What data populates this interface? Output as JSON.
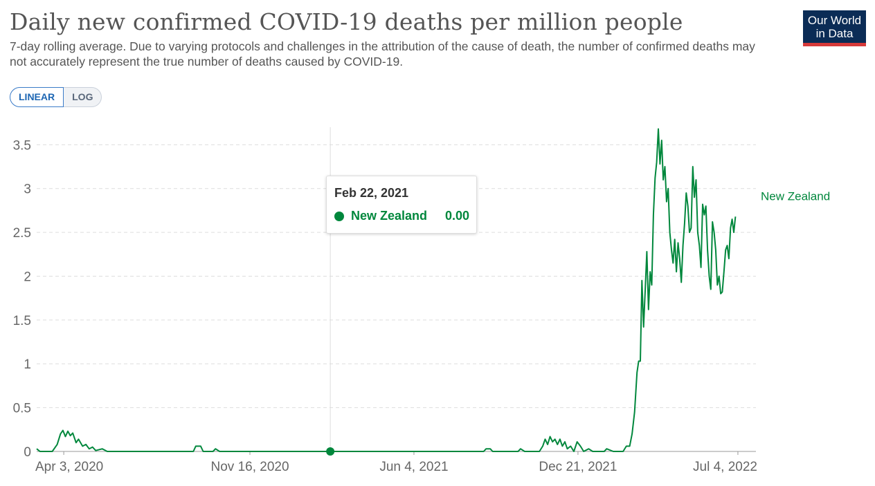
{
  "header": {
    "title": "Daily new confirmed COVID-19 deaths per million people",
    "subtitle": "7-day rolling average. Due to varying protocols and challenges in the attribution of the cause of death, the number of confirmed deaths may not accurately represent the true number of deaths caused by COVID-19."
  },
  "logo": {
    "line1": "Our World",
    "line2": "in Data"
  },
  "scale_toggle": {
    "linear_label": "LINEAR",
    "log_label": "LOG",
    "selected": "linear"
  },
  "tooltip": {
    "date": "Feb 22, 2021",
    "series": "New Zealand",
    "value": "0.00"
  },
  "colors": {
    "series": "#00873c",
    "accent": "#1d66b3"
  },
  "chart_data": {
    "type": "line",
    "title": "Daily new confirmed COVID-19 deaths per million people",
    "xlabel": "",
    "ylabel": "",
    "x_range": [
      "2020-03-01",
      "2022-07-26"
    ],
    "ylim": [
      0,
      3.7
    ],
    "grid": {
      "horizontal": true,
      "vertical": false
    },
    "y_ticks": [
      {
        "value": 0,
        "label": "0"
      },
      {
        "value": 0.5,
        "label": "0.5"
      },
      {
        "value": 1,
        "label": "1"
      },
      {
        "value": 1.5,
        "label": "1.5"
      },
      {
        "value": 2,
        "label": "2"
      },
      {
        "value": 2.5,
        "label": "2.5"
      },
      {
        "value": 3,
        "label": "3"
      },
      {
        "value": 3.5,
        "label": "3.5"
      }
    ],
    "x_ticks": [
      {
        "value": "2020-04-03",
        "label": "Apr 3, 2020"
      },
      {
        "value": "2020-11-16",
        "label": "Nov 16, 2020"
      },
      {
        "value": "2021-06-04",
        "label": "Jun 4, 2021"
      },
      {
        "value": "2021-12-21",
        "label": "Dec 21, 2021"
      },
      {
        "value": "2022-07-04",
        "label": "Jul 4, 2022"
      }
    ],
    "hover": {
      "x": "2021-02-22",
      "y": 0
    },
    "series": [
      {
        "name": "New Zealand",
        "points": [
          [
            "2020-03-01",
            0.03
          ],
          [
            "2020-03-05",
            0.0
          ],
          [
            "2020-03-20",
            0.0
          ],
          [
            "2020-03-26",
            0.08
          ],
          [
            "2020-03-30",
            0.2
          ],
          [
            "2020-04-02",
            0.24
          ],
          [
            "2020-04-05",
            0.17
          ],
          [
            "2020-04-08",
            0.23
          ],
          [
            "2020-04-11",
            0.18
          ],
          [
            "2020-04-14",
            0.21
          ],
          [
            "2020-04-18",
            0.1
          ],
          [
            "2020-04-21",
            0.14
          ],
          [
            "2020-04-26",
            0.06
          ],
          [
            "2020-04-30",
            0.08
          ],
          [
            "2020-05-04",
            0.03
          ],
          [
            "2020-05-08",
            0.05
          ],
          [
            "2020-05-12",
            0.01
          ],
          [
            "2020-05-20",
            0.03
          ],
          [
            "2020-05-26",
            0.0
          ],
          [
            "2020-09-08",
            0.0
          ],
          [
            "2020-09-11",
            0.06
          ],
          [
            "2020-09-17",
            0.06
          ],
          [
            "2020-09-20",
            0.0
          ],
          [
            "2020-10-02",
            0.0
          ],
          [
            "2020-10-05",
            0.03
          ],
          [
            "2020-10-10",
            0.0
          ],
          [
            "2021-02-22",
            0.0
          ],
          [
            "2021-08-28",
            0.0
          ],
          [
            "2021-08-31",
            0.03
          ],
          [
            "2021-09-05",
            0.03
          ],
          [
            "2021-09-08",
            0.0
          ],
          [
            "2021-10-09",
            0.0
          ],
          [
            "2021-10-12",
            0.03
          ],
          [
            "2021-10-17",
            0.0
          ],
          [
            "2021-11-04",
            0.0
          ],
          [
            "2021-11-08",
            0.06
          ],
          [
            "2021-11-11",
            0.14
          ],
          [
            "2021-11-14",
            0.08
          ],
          [
            "2021-11-17",
            0.17
          ],
          [
            "2021-11-20",
            0.11
          ],
          [
            "2021-11-23",
            0.14
          ],
          [
            "2021-11-26",
            0.08
          ],
          [
            "2021-11-29",
            0.14
          ],
          [
            "2021-12-02",
            0.06
          ],
          [
            "2021-12-05",
            0.11
          ],
          [
            "2021-12-08",
            0.03
          ],
          [
            "2021-12-12",
            0.06
          ],
          [
            "2021-12-16",
            0.0
          ],
          [
            "2021-12-20",
            0.11
          ],
          [
            "2021-12-24",
            0.06
          ],
          [
            "2021-12-28",
            0.0
          ],
          [
            "2022-01-03",
            0.03
          ],
          [
            "2022-01-08",
            0.0
          ],
          [
            "2022-01-22",
            0.0
          ],
          [
            "2022-01-25",
            0.03
          ],
          [
            "2022-02-02",
            0.0
          ],
          [
            "2022-02-14",
            0.0
          ],
          [
            "2022-02-18",
            0.06
          ],
          [
            "2022-02-22",
            0.06
          ],
          [
            "2022-02-25",
            0.2
          ],
          [
            "2022-02-28",
            0.45
          ],
          [
            "2022-03-03",
            0.9
          ],
          [
            "2022-03-05",
            1.03
          ],
          [
            "2022-03-07",
            1.03
          ],
          [
            "2022-03-09",
            1.95
          ],
          [
            "2022-03-11",
            1.42
          ],
          [
            "2022-03-13",
            1.85
          ],
          [
            "2022-03-15",
            2.28
          ],
          [
            "2022-03-17",
            1.62
          ],
          [
            "2022-03-19",
            2.05
          ],
          [
            "2022-03-21",
            1.9
          ],
          [
            "2022-03-23",
            2.7
          ],
          [
            "2022-03-25",
            3.12
          ],
          [
            "2022-03-27",
            3.3
          ],
          [
            "2022-03-29",
            3.68
          ],
          [
            "2022-03-31",
            3.28
          ],
          [
            "2022-04-02",
            3.55
          ],
          [
            "2022-04-04",
            3.1
          ],
          [
            "2022-04-06",
            3.25
          ],
          [
            "2022-04-08",
            2.85
          ],
          [
            "2022-04-10",
            3.0
          ],
          [
            "2022-04-12",
            2.5
          ],
          [
            "2022-04-14",
            2.3
          ],
          [
            "2022-04-16",
            2.15
          ],
          [
            "2022-04-18",
            2.42
          ],
          [
            "2022-04-20",
            2.05
          ],
          [
            "2022-04-22",
            2.38
          ],
          [
            "2022-04-24",
            2.2
          ],
          [
            "2022-04-26",
            1.93
          ],
          [
            "2022-04-28",
            2.35
          ],
          [
            "2022-04-30",
            2.6
          ],
          [
            "2022-05-02",
            2.95
          ],
          [
            "2022-05-04",
            2.8
          ],
          [
            "2022-05-06",
            2.5
          ],
          [
            "2022-05-08",
            2.55
          ],
          [
            "2022-05-10",
            3.25
          ],
          [
            "2022-05-12",
            2.9
          ],
          [
            "2022-05-14",
            3.1
          ],
          [
            "2022-05-16",
            2.5
          ],
          [
            "2022-05-18",
            2.35
          ],
          [
            "2022-05-20",
            2.1
          ],
          [
            "2022-05-22",
            2.82
          ],
          [
            "2022-05-24",
            2.7
          ],
          [
            "2022-05-26",
            2.8
          ],
          [
            "2022-05-28",
            2.3
          ],
          [
            "2022-05-30",
            2.0
          ],
          [
            "2022-06-01",
            1.85
          ],
          [
            "2022-06-03",
            2.62
          ],
          [
            "2022-06-05",
            2.5
          ],
          [
            "2022-06-07",
            2.3
          ],
          [
            "2022-06-09",
            1.9
          ],
          [
            "2022-06-11",
            2.0
          ],
          [
            "2022-06-13",
            1.8
          ],
          [
            "2022-06-15",
            1.82
          ],
          [
            "2022-06-17",
            2.05
          ],
          [
            "2022-06-19",
            2.3
          ],
          [
            "2022-06-21",
            2.35
          ],
          [
            "2022-06-23",
            2.2
          ],
          [
            "2022-06-25",
            2.55
          ],
          [
            "2022-06-27",
            2.65
          ],
          [
            "2022-06-29",
            2.5
          ],
          [
            "2022-07-01",
            2.68
          ]
        ]
      }
    ]
  }
}
